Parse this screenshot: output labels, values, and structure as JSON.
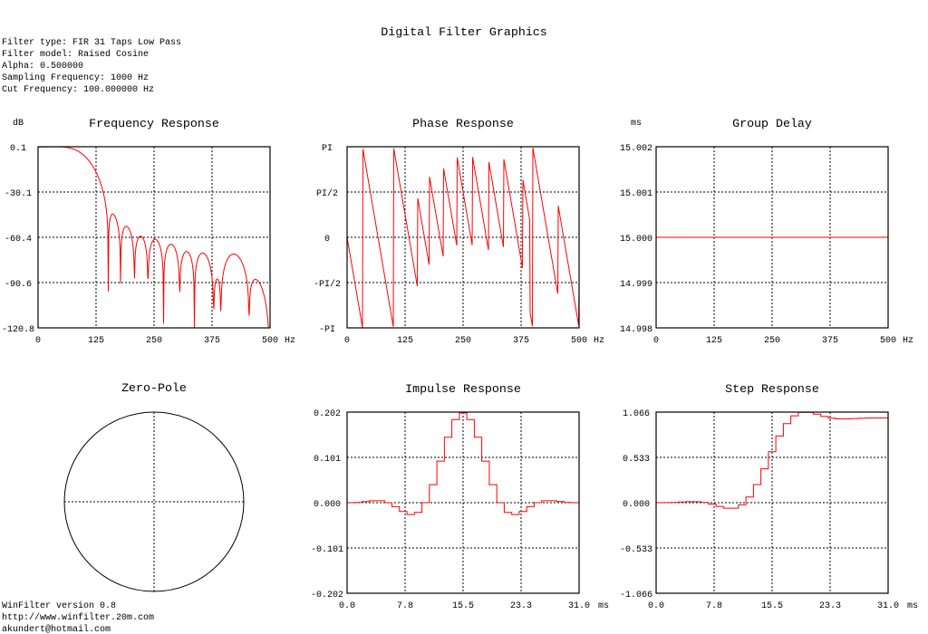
{
  "title": "Digital Filter Graphics",
  "info": [
    "Filter type: FIR 31 Taps Low Pass",
    "Filter model: Raised Cosine",
    "Alpha: 0.500000",
    "Sampling Frequency: 1000 Hz",
    "Cut Frequency: 100.000000 Hz"
  ],
  "footer": [
    "WinFilter version 0.8",
    "http://www.winfilter.20m.com",
    "akundert@hotmail.com"
  ],
  "colors": {
    "trace": "#ff0000",
    "axis": "#000000"
  },
  "chart_data": [
    {
      "id": "freq",
      "type": "line",
      "title": "Frequency Response",
      "ylabel": "dB",
      "xlabel": "Hz",
      "xticks": [
        "0",
        "125",
        "250",
        "375",
        "500"
      ],
      "yticks": [
        "0.1",
        "-30.1",
        "-60.4",
        "-90.6",
        "-120.8"
      ],
      "xlim": [
        0,
        500
      ],
      "ylim": [
        -120.8,
        0.1
      ],
      "source": "magnitude of impulse taps (dB)"
    },
    {
      "id": "phase",
      "type": "line",
      "title": "Phase Response",
      "ylabel": "",
      "xlabel": "Hz",
      "xticks": [
        "0",
        "125",
        "250",
        "375",
        "500"
      ],
      "yticks": [
        "PI",
        "PI/2",
        "0",
        "-PI/2",
        "-PI"
      ],
      "xlim": [
        0,
        500
      ],
      "ylim": [
        -3.14159,
        3.14159
      ],
      "source": "wrapped phase of impulse taps"
    },
    {
      "id": "gd",
      "type": "line",
      "title": "Group Delay",
      "ylabel": "ms",
      "xlabel": "Hz",
      "xticks": [
        "0",
        "125",
        "250",
        "375",
        "500"
      ],
      "yticks": [
        "15.002",
        "15.001",
        "15.000",
        "14.999",
        "14.998"
      ],
      "xlim": [
        0,
        500
      ],
      "ylim": [
        14.998,
        15.002
      ],
      "value": 15.0
    },
    {
      "id": "zp",
      "type": "scatter",
      "title": "Zero-Pole",
      "zeros": [],
      "poles": []
    },
    {
      "id": "impulse",
      "type": "line",
      "title": "Impulse Response",
      "xlabel": "ms",
      "xticks": [
        "0.0",
        "7.8",
        "15.5",
        "23.3",
        "31.0"
      ],
      "yticks": [
        "0.202",
        "0.101",
        "0.000",
        "-0.101",
        "-0.202"
      ],
      "xlim": [
        0,
        31
      ],
      "ylim": [
        -0.202,
        0.202
      ],
      "values": [
        0,
        0.0006,
        0.0024,
        0.0043,
        0.0042,
        0,
        -0.0088,
        -0.0196,
        -0.0265,
        -0.0219,
        0,
        0.0402,
        0.0927,
        0.1458,
        0.1854,
        0.2,
        0.1854,
        0.1458,
        0.0927,
        0.0402,
        0,
        -0.0219,
        -0.0265,
        -0.0196,
        -0.0088,
        0,
        0.0042,
        0.0043,
        0.0024,
        0.0006,
        0
      ]
    },
    {
      "id": "step",
      "type": "line",
      "title": "Step Response",
      "xlabel": "ms",
      "xticks": [
        "0.0",
        "7.8",
        "15.5",
        "23.3",
        "31.0"
      ],
      "yticks": [
        "1.066",
        "0.533",
        "0.000",
        "-0.533",
        "-1.066"
      ],
      "xlim": [
        0,
        31
      ],
      "ylim": [
        -1.066,
        1.066
      ],
      "source": "cumulative sum of impulse values"
    }
  ]
}
